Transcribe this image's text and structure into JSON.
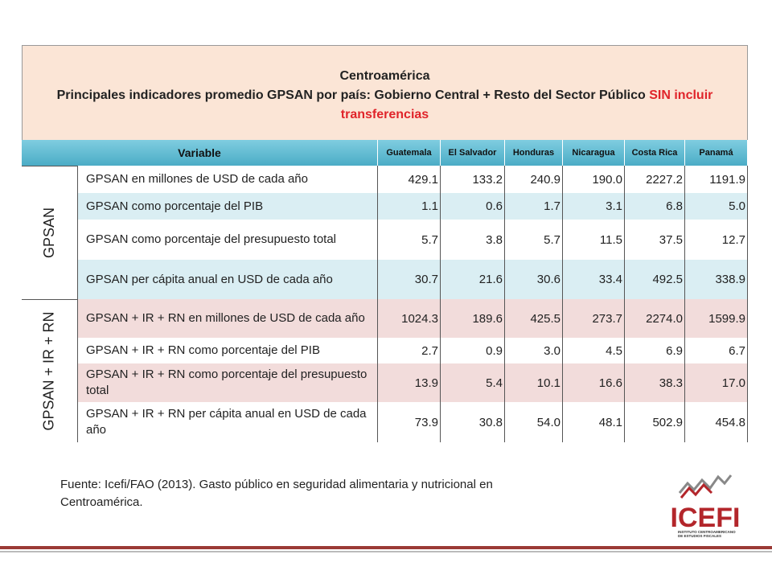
{
  "header": {
    "region": "Centroamérica",
    "subtitle": "Principales indicadores promedio GPSAN por país: Gobierno Central + Resto del Sector Público",
    "highlight": "SIN incluir transferencias"
  },
  "table": {
    "columns": [
      "Variable",
      "Guatemala",
      "El Salvador",
      "Honduras",
      "Nicaragua",
      "Costa Rica",
      "Panamá"
    ],
    "groups": [
      {
        "label": "GPSAN",
        "rows": [
          {
            "variable": "GPSAN en millones de USD de cada año",
            "values": [
              "429.1",
              "133.2",
              "240.9",
              "190.0",
              "2227.2",
              "1191.9"
            ]
          },
          {
            "variable": "GPSAN como porcentaje del PIB",
            "values": [
              "1.1",
              "0.6",
              "1.7",
              "3.1",
              "6.8",
              "5.0"
            ]
          },
          {
            "variable": "GPSAN como porcentaje del presupuesto total",
            "values": [
              "5.7",
              "3.8",
              "5.7",
              "11.5",
              "37.5",
              "12.7"
            ]
          },
          {
            "variable": "GPSAN per cápita anual en USD de cada año",
            "values": [
              "30.7",
              "21.6",
              "30.6",
              "33.4",
              "492.5",
              "338.9"
            ]
          }
        ]
      },
      {
        "label": "GPSAN + IR + RN",
        "rows": [
          {
            "variable": "GPSAN + IR + RN en millones de USD de cada año",
            "values": [
              "1024.3",
              "189.6",
              "425.5",
              "273.7",
              "2274.0",
              "1599.9"
            ]
          },
          {
            "variable": "GPSAN + IR + RN como porcentaje del PIB",
            "values": [
              "2.7",
              "0.9",
              "3.0",
              "4.5",
              "6.9",
              "6.7"
            ]
          },
          {
            "variable": "GPSAN + IR + RN como porcentaje del presupuesto total",
            "values": [
              "13.9",
              "5.4",
              "10.1",
              "16.6",
              "38.3",
              "17.0"
            ]
          },
          {
            "variable": "GPSAN + IR + RN per cápita anual en USD de cada año",
            "values": [
              "73.9",
              "30.8",
              "54.0",
              "48.1",
              "502.9",
              "454.8"
            ]
          }
        ]
      }
    ]
  },
  "source": "Fuente: Icefi/FAO (2013). Gasto público en seguridad alimentaria y nutricional en Centroamérica.",
  "logo": {
    "name": "ICEFI",
    "tagline": "INSTITUTO CENTROAMERICANO DE ESTUDIOS FISCALES"
  }
}
